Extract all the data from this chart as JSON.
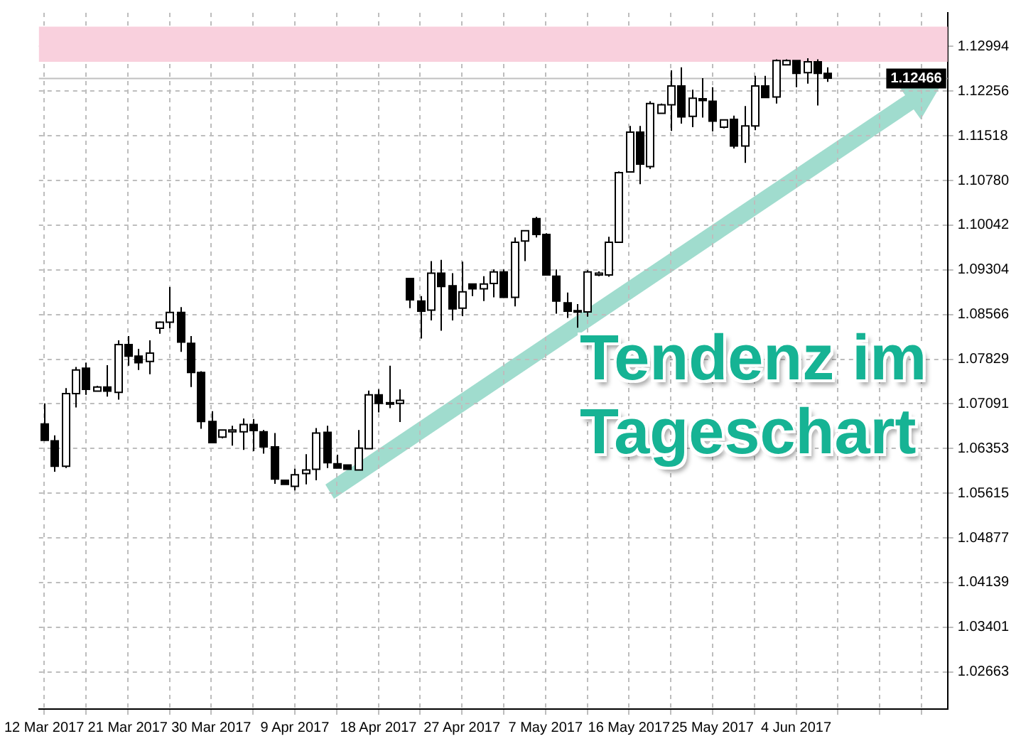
{
  "chart_data": {
    "type": "candlestick",
    "annotations": [
      "Tendenz im Tageschart"
    ],
    "categories": [
      "12 Mar 2017",
      null,
      null,
      null,
      null,
      null,
      null,
      null,
      "21 Mar 2017",
      null,
      null,
      null,
      null,
      null,
      null,
      null,
      "30 Mar 2017",
      null,
      null,
      null,
      null,
      null,
      null,
      null,
      "9 Apr 2017",
      null,
      null,
      null,
      null,
      null,
      null,
      null,
      "18 Apr 2017",
      null,
      null,
      null,
      null,
      null,
      null,
      null,
      "27 Apr 2017",
      null,
      null,
      null,
      null,
      null,
      null,
      null,
      "7 May 2017",
      null,
      null,
      null,
      null,
      null,
      null,
      null,
      "16 May 2017",
      null,
      null,
      null,
      null,
      null,
      null,
      null,
      "25 May 2017",
      null,
      null,
      null,
      null,
      null,
      null,
      null,
      "4 Jun 2017",
      null,
      null,
      null,
      null,
      null,
      null,
      null,
      null,
      null,
      null,
      null,
      null,
      null,
      null
    ],
    "ohlc": [
      [
        1.0676,
        1.071,
        1.0648,
        1.0649
      ],
      [
        1.0648,
        1.0657,
        1.0597,
        1.0606
      ],
      [
        1.0606,
        1.0735,
        1.0603,
        1.0726
      ],
      [
        1.0726,
        1.077,
        1.0703,
        1.0765
      ],
      [
        1.0768,
        1.0777,
        1.0724,
        1.0733
      ],
      [
        1.073,
        1.0739,
        1.073,
        1.0737
      ],
      [
        1.0737,
        1.0773,
        1.0721,
        1.073
      ],
      [
        1.0728,
        1.0814,
        1.0716,
        1.0807
      ],
      [
        1.0807,
        1.0821,
        1.0772,
        1.0788
      ],
      [
        1.0788,
        1.08,
        1.0765,
        1.0777
      ],
      [
        1.0779,
        1.0814,
        1.0758,
        1.0793
      ],
      [
        1.0834,
        1.0845,
        1.0825,
        1.0844
      ],
      [
        1.0844,
        1.0902,
        1.0834,
        1.086
      ],
      [
        1.086,
        1.0869,
        1.0795,
        1.0811
      ],
      [
        1.0809,
        1.0821,
        1.0737,
        1.0761
      ],
      [
        1.0761,
        1.0763,
        1.0668,
        1.068
      ],
      [
        1.068,
        1.0697,
        1.0645,
        1.0645
      ],
      [
        1.0654,
        1.0666,
        1.0652,
        1.0666
      ],
      [
        1.0663,
        1.0673,
        1.064,
        1.0666
      ],
      [
        1.0663,
        1.0685,
        1.0633,
        1.0675
      ],
      [
        1.0675,
        1.0684,
        1.0631,
        1.0665
      ],
      [
        1.0663,
        1.0666,
        1.0627,
        1.0638
      ],
      [
        1.0638,
        1.0661,
        1.0577,
        1.0585
      ],
      [
        1.0583,
        1.0583,
        1.0576,
        1.0576
      ],
      [
        1.0573,
        1.0602,
        1.0566,
        1.0592
      ],
      [
        1.0594,
        1.0626,
        1.0576,
        1.06
      ],
      [
        1.0601,
        1.0669,
        1.0583,
        1.0661
      ],
      [
        1.0662,
        1.0673,
        1.0603,
        1.0612
      ],
      [
        1.061,
        1.0625,
        1.0603,
        1.0603
      ],
      [
        1.0608,
        1.0608,
        1.0601,
        1.0601
      ],
      [
        1.06,
        1.0666,
        1.06,
        1.0636
      ],
      [
        1.0635,
        1.0731,
        1.0635,
        1.0724
      ],
      [
        1.0724,
        1.0733,
        1.0695,
        1.071
      ],
      [
        1.071,
        1.0772,
        1.0702,
        1.0711
      ],
      [
        1.071,
        1.0733,
        1.0679,
        1.0715
      ],
      [
        1.0916,
        1.0916,
        1.0867,
        1.0881
      ],
      [
        1.0879,
        1.0887,
        1.0817,
        1.0862
      ],
      [
        1.0864,
        1.0945,
        1.0847,
        1.0925
      ],
      [
        1.0925,
        1.0947,
        1.083,
        1.0903
      ],
      [
        1.0904,
        1.0925,
        1.0847,
        1.0866
      ],
      [
        1.0867,
        1.0944,
        1.0854,
        1.0894
      ],
      [
        1.0907,
        1.0907,
        1.0887,
        1.0899
      ],
      [
        1.0899,
        1.092,
        1.0879,
        1.0907
      ],
      [
        1.0908,
        1.0931,
        1.0885,
        1.0927
      ],
      [
        1.0927,
        1.0931,
        1.0885,
        1.0885
      ],
      [
        1.0885,
        1.0984,
        1.087,
        1.0976
      ],
      [
        1.0978,
        1.0995,
        1.0945,
        1.0995
      ],
      [
        1.1015,
        1.1018,
        1.0984,
        1.0989
      ],
      [
        1.0989,
        1.0991,
        1.0922,
        1.0922
      ],
      [
        1.092,
        1.0931,
        1.0858,
        1.0879
      ],
      [
        1.0876,
        1.0893,
        1.0851,
        1.0862
      ],
      [
        1.0861,
        1.0874,
        1.0835,
        1.0863
      ],
      [
        1.0861,
        1.093,
        1.0853,
        1.0927
      ],
      [
        1.0922,
        1.0928,
        1.092,
        1.0925
      ],
      [
        1.0922,
        1.0985,
        1.0919,
        1.0976
      ],
      [
        1.0976,
        1.1093,
        1.0976,
        1.1091
      ],
      [
        1.1092,
        1.1168,
        1.1092,
        1.1158
      ],
      [
        1.1158,
        1.1168,
        1.1072,
        1.1105
      ],
      [
        1.1101,
        1.1209,
        1.1097,
        1.1205
      ],
      [
        1.1189,
        1.1205,
        1.1189,
        1.1203
      ],
      [
        1.1203,
        1.126,
        1.116,
        1.1234
      ],
      [
        1.1234,
        1.1265,
        1.1172,
        1.1183
      ],
      [
        1.1184,
        1.1228,
        1.1166,
        1.1214
      ],
      [
        1.1213,
        1.1247,
        1.1182,
        1.121
      ],
      [
        1.1209,
        1.1232,
        1.1159,
        1.1176
      ],
      [
        1.1166,
        1.1179,
        1.1164,
        1.1178
      ],
      [
        1.1179,
        1.1185,
        1.1131,
        1.1135
      ],
      [
        1.1135,
        1.1201,
        1.1107,
        1.1168
      ],
      [
        1.1168,
        1.1251,
        1.1161,
        1.1234
      ],
      [
        1.1234,
        1.1251,
        1.1215,
        1.1215
      ],
      [
        1.1216,
        1.1278,
        1.1205,
        1.1276
      ],
      [
        1.1269,
        1.1278,
        1.1269,
        1.1276
      ],
      [
        1.1276,
        1.1276,
        1.1232,
        1.1255
      ],
      [
        1.1256,
        1.128,
        1.1238,
        1.1274
      ],
      [
        1.1274,
        1.1278,
        1.1202,
        1.1255
      ],
      [
        1.1255,
        1.1265,
        1.1241,
        1.1247
      ],
      null,
      null,
      null,
      null,
      null,
      null,
      null,
      null,
      null,
      null,
      null
    ],
    "ylim": [
      1.0205,
      1.1355
    ],
    "yticks": [
      1.02663,
      1.03401,
      1.04139,
      1.04877,
      1.05615,
      1.06353,
      1.07091,
      1.07829,
      1.08566,
      1.09304,
      1.10042,
      {
        "value": 1.1078,
        "label": "1.10780"
      },
      1.11518,
      1.12256,
      1.12994
    ],
    "grid": true,
    "ref_lines": [
      {
        "axis": "y",
        "value": 1.12466,
        "label": "1.12466",
        "color": "#c0c0c0"
      }
    ],
    "bands": [
      {
        "axis": "y",
        "from": 1.1274,
        "to": 1.1332,
        "color": "#f9d0dd"
      }
    ]
  }
}
